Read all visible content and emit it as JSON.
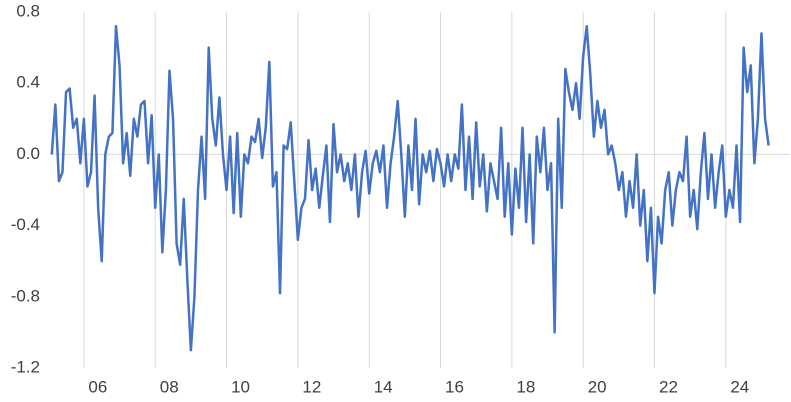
{
  "chart_data": {
    "type": "line",
    "color": "#4472c4",
    "x": [
      5.1,
      5.2,
      5.3,
      5.4,
      5.5,
      5.6,
      5.7,
      5.8,
      5.9,
      6.0,
      6.1,
      6.2,
      6.3,
      6.4,
      6.5,
      6.6,
      6.7,
      6.8,
      6.9,
      7.0,
      7.1,
      7.2,
      7.3,
      7.4,
      7.5,
      7.6,
      7.7,
      7.8,
      7.9,
      8.0,
      8.1,
      8.2,
      8.3,
      8.4,
      8.5,
      8.6,
      8.7,
      8.8,
      8.9,
      9.0,
      9.1,
      9.2,
      9.3,
      9.4,
      9.5,
      9.6,
      9.7,
      9.8,
      9.9,
      10.0,
      10.1,
      10.2,
      10.3,
      10.4,
      10.5,
      10.6,
      10.7,
      10.8,
      10.9,
      11.0,
      11.1,
      11.2,
      11.3,
      11.4,
      11.5,
      11.6,
      11.7,
      11.8,
      11.9,
      12.0,
      12.1,
      12.2,
      12.3,
      12.4,
      12.5,
      12.6,
      12.7,
      12.8,
      12.9,
      13.0,
      13.1,
      13.2,
      13.3,
      13.4,
      13.5,
      13.6,
      13.7,
      13.8,
      13.9,
      14.0,
      14.1,
      14.2,
      14.3,
      14.4,
      14.5,
      14.6,
      14.7,
      14.8,
      14.9,
      15.0,
      15.1,
      15.2,
      15.3,
      15.4,
      15.5,
      15.6,
      15.7,
      15.8,
      15.9,
      16.0,
      16.1,
      16.2,
      16.3,
      16.4,
      16.5,
      16.6,
      16.7,
      16.8,
      16.9,
      17.0,
      17.1,
      17.2,
      17.3,
      17.4,
      17.5,
      17.6,
      17.7,
      17.8,
      17.9,
      18.0,
      18.1,
      18.2,
      18.3,
      18.4,
      18.5,
      18.6,
      18.7,
      18.8,
      18.9,
      19.0,
      19.1,
      19.2,
      19.3,
      19.4,
      19.5,
      19.6,
      19.7,
      19.8,
      19.9,
      20.0,
      20.1,
      20.2,
      20.3,
      20.4,
      20.5,
      20.6,
      20.7,
      20.8,
      20.9,
      21.0,
      21.1,
      21.2,
      21.3,
      21.4,
      21.5,
      21.6,
      21.7,
      21.8,
      21.9,
      22.0,
      22.1,
      22.2,
      22.3,
      22.4,
      22.5,
      22.6,
      22.7,
      22.8,
      22.9,
      23.0,
      23.1,
      23.2,
      23.3,
      23.4,
      23.5,
      23.6,
      23.7,
      23.8,
      23.9,
      24.0,
      24.1,
      24.2,
      24.3,
      24.4,
      24.5,
      24.6,
      24.7,
      24.8,
      24.9,
      25.0,
      25.1,
      25.2
    ],
    "values": [
      0.0,
      0.28,
      -0.15,
      -0.1,
      0.35,
      0.37,
      0.15,
      0.2,
      -0.05,
      0.2,
      -0.18,
      -0.1,
      0.33,
      -0.3,
      -0.6,
      0.0,
      0.1,
      0.12,
      0.72,
      0.5,
      -0.05,
      0.12,
      -0.12,
      0.2,
      0.1,
      0.28,
      0.3,
      -0.05,
      0.22,
      -0.3,
      0.0,
      -0.55,
      -0.2,
      0.47,
      0.2,
      -0.5,
      -0.62,
      -0.25,
      -0.7,
      -1.1,
      -0.8,
      -0.2,
      0.1,
      -0.25,
      0.6,
      0.2,
      0.05,
      0.32,
      0.0,
      -0.2,
      0.1,
      -0.33,
      0.12,
      -0.35,
      0.0,
      -0.05,
      0.1,
      0.07,
      0.2,
      -0.02,
      0.15,
      0.52,
      -0.18,
      -0.1,
      -0.78,
      0.05,
      0.03,
      0.18,
      -0.15,
      -0.48,
      -0.3,
      -0.25,
      0.08,
      -0.2,
      -0.08,
      -0.3,
      -0.12,
      0.05,
      -0.38,
      0.17,
      -0.1,
      0.0,
      -0.15,
      -0.05,
      -0.2,
      0.0,
      -0.35,
      -0.1,
      0.02,
      -0.22,
      -0.05,
      0.02,
      -0.1,
      0.05,
      -0.3,
      -0.05,
      0.1,
      0.3,
      0.0,
      -0.35,
      0.05,
      -0.2,
      0.2,
      -0.28,
      0.0,
      -0.1,
      0.02,
      -0.15,
      0.03,
      -0.05,
      -0.18,
      0.0,
      -0.15,
      0.0,
      -0.08,
      0.28,
      -0.2,
      0.1,
      -0.25,
      0.18,
      -0.18,
      0.0,
      -0.32,
      -0.05,
      -0.15,
      -0.25,
      0.15,
      -0.35,
      -0.05,
      -0.45,
      -0.08,
      -0.3,
      0.15,
      -0.38,
      0.0,
      -0.5,
      0.1,
      -0.1,
      0.15,
      -0.2,
      -0.05,
      -1.0,
      0.2,
      -0.3,
      0.48,
      0.35,
      0.25,
      0.4,
      0.2,
      0.55,
      0.72,
      0.45,
      0.1,
      0.3,
      0.15,
      0.25,
      0.0,
      0.05,
      -0.05,
      -0.2,
      -0.1,
      -0.35,
      -0.15,
      -0.3,
      0.0,
      -0.4,
      -0.2,
      -0.6,
      -0.3,
      -0.78,
      -0.35,
      -0.5,
      -0.2,
      -0.1,
      -0.4,
      -0.2,
      -0.1,
      -0.15,
      0.1,
      -0.35,
      -0.2,
      -0.42,
      -0.1,
      0.12,
      -0.25,
      0.0,
      -0.3,
      -0.1,
      0.05,
      -0.35,
      -0.2,
      -0.3,
      0.05,
      -0.38,
      0.6,
      0.35,
      0.5,
      -0.05,
      0.2,
      0.68,
      0.2,
      0.05
    ],
    "xlim": [
      5.05,
      25.8
    ],
    "xticks": [
      {
        "value": 6,
        "label": "06"
      },
      {
        "value": 8,
        "label": "08"
      },
      {
        "value": 10,
        "label": "10"
      },
      {
        "value": 12,
        "label": "12"
      },
      {
        "value": 14,
        "label": "14"
      },
      {
        "value": 16,
        "label": "16"
      },
      {
        "value": 18,
        "label": "18"
      },
      {
        "value": 20,
        "label": "20"
      },
      {
        "value": 22,
        "label": "22"
      },
      {
        "value": 24,
        "label": "24"
      }
    ],
    "ylim": [
      -1.2,
      0.8
    ],
    "yticks": [
      0.8,
      0.4,
      {
        "value": 0,
        "label": "0.0"
      },
      -0.4,
      -0.8,
      -1.2
    ],
    "grid": "x"
  }
}
